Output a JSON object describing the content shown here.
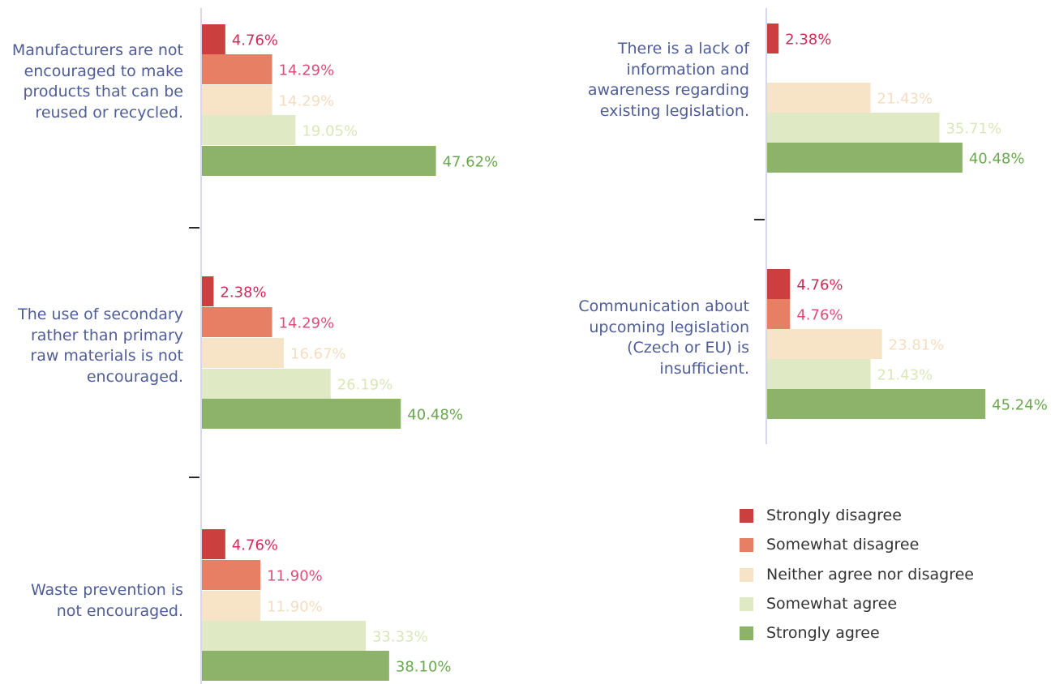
{
  "legend": [
    {
      "label": "Strongly disagree",
      "color": "#cc3f3f"
    },
    {
      "label": "Somewhat disagree",
      "color": "#e67f63"
    },
    {
      "label": "Neither agree nor disagree",
      "color": "#f7e3c6"
    },
    {
      "label": "Somewhat agree",
      "color": "#dfeac5"
    },
    {
      "label": "Strongly agree",
      "color": "#8cb369"
    }
  ],
  "label_colors": [
    "#d42a59",
    "#d94f78",
    "#f5ddc0",
    "#d9e8b8",
    "#6aa84f"
  ],
  "chart_data": [
    {
      "type": "bar",
      "category": "Manufacturers are not encouraged to make products that can be reused or recycled.",
      "series": [
        "Strongly disagree",
        "Somewhat disagree",
        "Neither agree nor disagree",
        "Somewhat agree",
        "Strongly agree"
      ],
      "values": [
        4.76,
        14.29,
        14.29,
        19.05,
        47.62
      ],
      "labels": [
        "4.76%",
        "14.29%",
        "14.29%",
        "19.05%",
        "47.62%"
      ]
    },
    {
      "type": "bar",
      "category": "The use of secondary rather than primary raw materials is not encouraged.",
      "series": [
        "Strongly disagree",
        "Somewhat disagree",
        "Neither agree nor disagree",
        "Somewhat agree",
        "Strongly agree"
      ],
      "values": [
        2.38,
        14.29,
        16.67,
        26.19,
        40.48
      ],
      "labels": [
        "2.38%",
        "14.29%",
        "16.67%",
        "26.19%",
        "40.48%"
      ]
    },
    {
      "type": "bar",
      "category": "Waste prevention is not encouraged.",
      "series": [
        "Strongly disagree",
        "Somewhat disagree",
        "Neither agree nor disagree",
        "Somewhat agree",
        "Strongly agree"
      ],
      "values": [
        4.76,
        11.9,
        11.9,
        33.33,
        38.1
      ],
      "labels": [
        "4.76%",
        "11.90%",
        "11.90%",
        "33.33%",
        "38.10%"
      ]
    },
    {
      "type": "bar",
      "category": "There is a lack of information and awareness regarding existing legislation.",
      "series": [
        "Strongly disagree",
        "Somewhat disagree",
        "Neither agree nor disagree",
        "Somewhat agree",
        "Strongly agree"
      ],
      "values": [
        2.38,
        0,
        21.43,
        35.71,
        40.48
      ],
      "labels": [
        "2.38%",
        "",
        "21.43%",
        "35.71%",
        "40.48%"
      ]
    },
    {
      "type": "bar",
      "category": "Communication about upcoming legislation (Czech or EU) is insufficient.",
      "series": [
        "Strongly disagree",
        "Somewhat disagree",
        "Neither agree nor disagree",
        "Somewhat agree",
        "Strongly agree"
      ],
      "values": [
        4.76,
        4.76,
        23.81,
        21.43,
        45.24
      ],
      "labels": [
        "4.76%",
        "4.76%",
        "23.81%",
        "21.43%",
        "45.24%"
      ]
    }
  ]
}
